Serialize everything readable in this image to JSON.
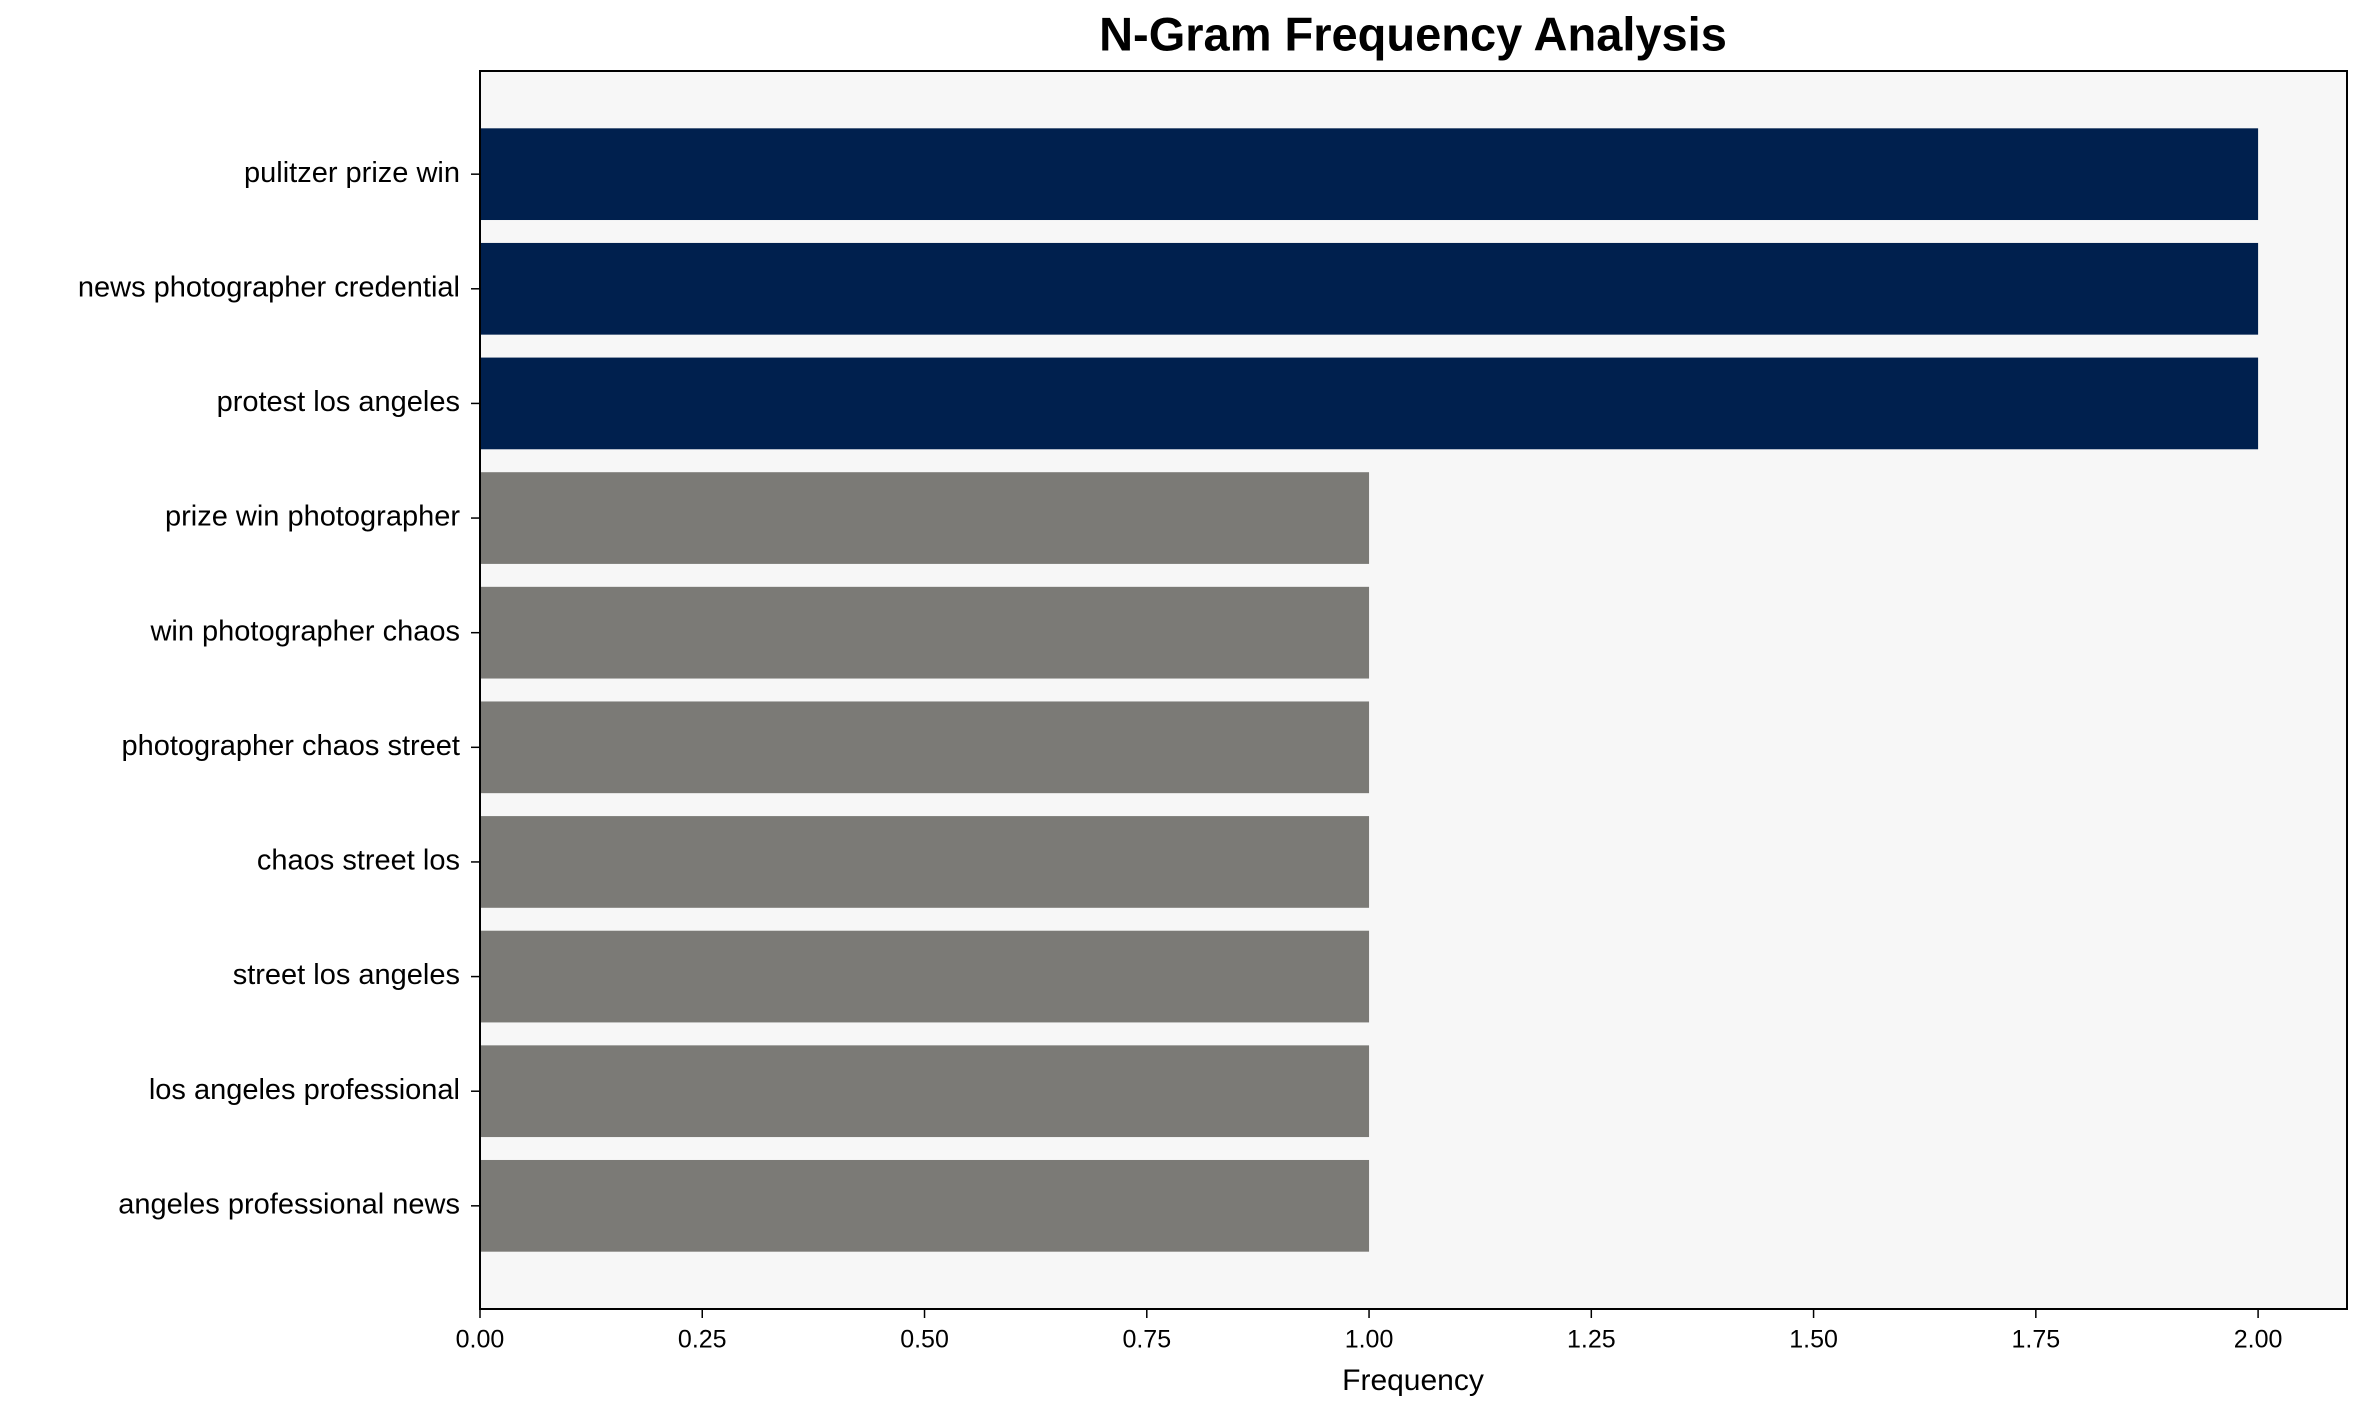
{
  "chart_data": {
    "type": "barh",
    "title": "N-Gram Frequency Analysis",
    "xlabel": "Frequency",
    "categories": [
      "pulitzer prize win",
      "news photographer credential",
      "protest los angeles",
      "prize win photographer",
      "win photographer chaos",
      "photographer chaos street",
      "chaos street los",
      "street los angeles",
      "los angeles professional",
      "angeles professional news"
    ],
    "values": [
      2,
      2,
      2,
      1,
      1,
      1,
      1,
      1,
      1,
      1
    ],
    "colors": [
      "#00204e",
      "#00204e",
      "#00204e",
      "#7b7a76",
      "#7b7a76",
      "#7b7a76",
      "#7b7a76",
      "#7b7a76",
      "#7b7a76",
      "#7b7a76"
    ],
    "xlim": [
      0,
      2.1
    ],
    "xticks": [
      {
        "value": 0,
        "label": "0.00"
      },
      {
        "value": 0.25,
        "label": "0.25"
      },
      {
        "value": 0.5,
        "label": "0.50"
      },
      {
        "value": 0.75,
        "label": "0.75"
      },
      {
        "value": 1,
        "label": "1.00"
      },
      {
        "value": 1.25,
        "label": "1.25"
      },
      {
        "value": 1.5,
        "label": "1.50"
      },
      {
        "value": 1.75,
        "label": "1.75"
      },
      {
        "value": 2,
        "label": "2.00"
      }
    ],
    "grid": false
  }
}
